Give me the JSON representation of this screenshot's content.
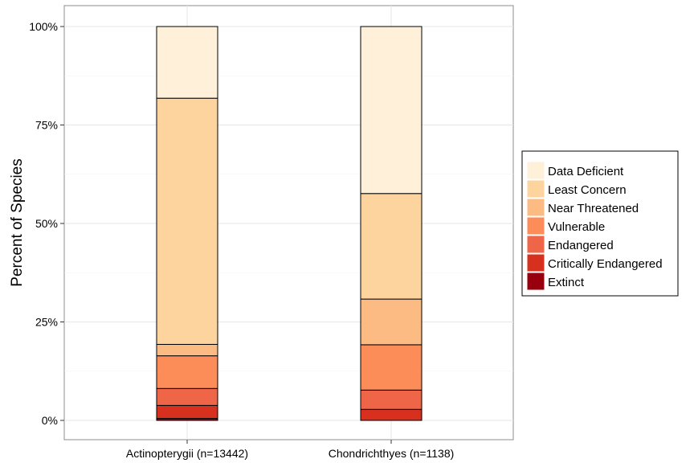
{
  "chart_data": {
    "type": "bar",
    "stacked": true,
    "percent": true,
    "categories": [
      "Actinopterygii (n=13442)",
      "Chondrichthyes (n=1138)"
    ],
    "series": [
      {
        "name": "Extinct",
        "color": "#99000d",
        "values": [
          0.5,
          0.0
        ]
      },
      {
        "name": "Critically Endangered",
        "color": "#d7301f",
        "values": [
          3.3,
          2.8
        ]
      },
      {
        "name": "Endangered",
        "color": "#ef6548",
        "values": [
          4.3,
          4.9
        ]
      },
      {
        "name": "Vulnerable",
        "color": "#fc8d59",
        "values": [
          8.3,
          11.5
        ]
      },
      {
        "name": "Near Threatened",
        "color": "#fdbb84",
        "values": [
          2.9,
          11.6
        ]
      },
      {
        "name": "Least Concern",
        "color": "#fdd49e",
        "values": [
          62.5,
          26.8
        ]
      },
      {
        "name": "Data Deficient",
        "color": "#fef0d9",
        "values": [
          18.2,
          42.4
        ]
      }
    ],
    "ylabel": "Percent of Species",
    "xlabel": "",
    "ylim": [
      0,
      100
    ],
    "yticks": [
      "0%",
      "25%",
      "50%",
      "75%",
      "100%"
    ],
    "ytick_values": [
      0,
      25,
      50,
      75,
      100
    ],
    "legend_order": [
      "Data Deficient",
      "Least Concern",
      "Near Threatened",
      "Vulnerable",
      "Endangered",
      "Critically Endangered",
      "Extinct"
    ],
    "legend_position": "right",
    "grid": true
  }
}
